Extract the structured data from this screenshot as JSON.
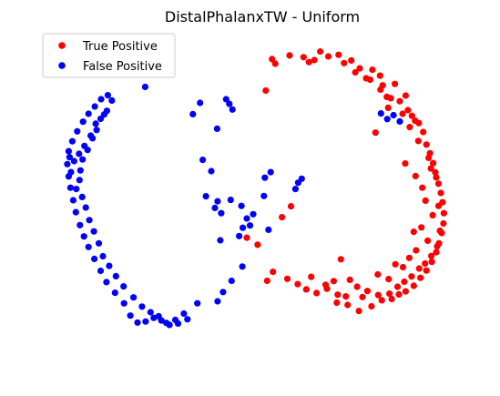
{
  "chart_data": {
    "type": "scatter",
    "title": "DistalPhalanxTW - Uniform",
    "xlabel": "",
    "ylabel": "",
    "axes_visible": false,
    "grid": false,
    "legend": "top-left",
    "xlim": [
      0,
      100
    ],
    "ylim": [
      0,
      100
    ],
    "series": [
      {
        "name": "True Positive",
        "color": "#ff0000",
        "points": [
          [
            54.8,
            92.6
          ],
          [
            55.5,
            91.2
          ],
          [
            58.7,
            93.7
          ],
          [
            61.8,
            93.2
          ],
          [
            63.0,
            91.7
          ],
          [
            64.2,
            92.3
          ],
          [
            65.5,
            94.9
          ],
          [
            67.3,
            93.4
          ],
          [
            69.6,
            93.9
          ],
          [
            70.8,
            91.4
          ],
          [
            72.4,
            92.2
          ],
          [
            74.3,
            89.8
          ],
          [
            75.7,
            86.8
          ],
          [
            77.1,
            89.4
          ],
          [
            78.8,
            87.6
          ],
          [
            79.4,
            84.7
          ],
          [
            80.3,
            81.2
          ],
          [
            82.1,
            85.1
          ],
          [
            83.2,
            79.9
          ],
          [
            84.5,
            81.6
          ],
          [
            85.0,
            77.2
          ],
          [
            85.9,
            75.5
          ],
          [
            86.6,
            74.0
          ],
          [
            87.4,
            73.3
          ],
          [
            88.4,
            70.6
          ],
          [
            89.1,
            66.8
          ],
          [
            89.9,
            64.2
          ],
          [
            90.6,
            61.2
          ],
          [
            91.1,
            58.4
          ],
          [
            91.8,
            55.0
          ],
          [
            92.3,
            52.2
          ],
          [
            92.7,
            49.4
          ],
          [
            93.0,
            46.1
          ],
          [
            92.9,
            43.0
          ],
          [
            92.5,
            40.1
          ],
          [
            91.9,
            37.0
          ],
          [
            91.3,
            34.3
          ],
          [
            90.3,
            31.4
          ],
          [
            89.1,
            28.8
          ],
          [
            87.8,
            26.6
          ],
          [
            86.3,
            24.2
          ],
          [
            84.5,
            22.5
          ],
          [
            83.0,
            21.6
          ],
          [
            81.4,
            20.2
          ],
          [
            79.2,
            19.8
          ],
          [
            76.9,
            18.0
          ],
          [
            74.1,
            16.6
          ],
          [
            71.6,
            18.4
          ],
          [
            69.4,
            21.5
          ],
          [
            67.0,
            23.3
          ],
          [
            64.7,
            22.0
          ],
          [
            62.4,
            23.1
          ],
          [
            60.5,
            24.7
          ],
          [
            58.2,
            26.3
          ],
          [
            55.0,
            28.4
          ],
          [
            53.7,
            25.7
          ],
          [
            51.6,
            36.6
          ],
          [
            49.2,
            38.7
          ],
          [
            53.4,
            83.1
          ],
          [
            57.0,
            44.9
          ],
          [
            59.0,
            48.2
          ],
          [
            92.1,
            40.8
          ],
          [
            91.5,
            36.1
          ],
          [
            90.2,
            33.2
          ],
          [
            88.8,
            30.9
          ],
          [
            87.5,
            29.4
          ],
          [
            85.8,
            27.0
          ],
          [
            84.2,
            25.4
          ],
          [
            82.7,
            23.9
          ],
          [
            80.9,
            21.8
          ],
          [
            78.4,
            21.4
          ],
          [
            76.0,
            22.6
          ],
          [
            73.7,
            23.9
          ],
          [
            71.2,
            21.0
          ],
          [
            68.5,
            25.6
          ],
          [
            91.3,
            56.9
          ],
          [
            90.1,
            59.6
          ],
          [
            89.6,
            62.8
          ],
          [
            90.5,
            45.5
          ],
          [
            91.8,
            48.3
          ],
          [
            88.9,
            49.9
          ],
          [
            88.2,
            53.8
          ],
          [
            86.7,
            57.3
          ],
          [
            84.4,
            61.1
          ],
          [
            87.3,
            67.9
          ],
          [
            85.4,
            72.1
          ],
          [
            83.8,
            76.1
          ],
          [
            81.2,
            80.8
          ],
          [
            78.9,
            83.4
          ],
          [
            76.6,
            86.4
          ],
          [
            73.3,
            88.6
          ],
          [
            70.1,
            32.2
          ],
          [
            77.8,
            70.4
          ],
          [
            80.6,
            77.9
          ],
          [
            86.3,
            40.5
          ],
          [
            82.2,
            30.7
          ],
          [
            88.0,
            41.8
          ],
          [
            89.4,
            37.8
          ],
          [
            86.8,
            34.9
          ],
          [
            85.3,
            32.6
          ],
          [
            83.9,
            29.8
          ],
          [
            80.7,
            26.2
          ],
          [
            78.3,
            27.6
          ],
          [
            74.9,
            20.8
          ],
          [
            72.1,
            26.0
          ],
          [
            69.2,
            19.1
          ],
          [
            66.7,
            24.5
          ],
          [
            63.5,
            26.9
          ]
        ]
      },
      {
        "name": "False Positive",
        "color": "#0000ff",
        "points": [
          [
            26.6,
            84.2
          ],
          [
            37.2,
            76.0
          ],
          [
            38.8,
            79.4
          ],
          [
            44.6,
            80.5
          ],
          [
            45.3,
            79.1
          ],
          [
            46.0,
            77.4
          ],
          [
            42.6,
            71.6
          ],
          [
            39.4,
            62.2
          ],
          [
            41.3,
            58.8
          ],
          [
            40.1,
            51.2
          ],
          [
            42.7,
            49.7
          ],
          [
            43.5,
            46.1
          ],
          [
            45.6,
            50.1
          ],
          [
            48.0,
            48.3
          ],
          [
            49.2,
            44.5
          ],
          [
            49.9,
            42.4
          ],
          [
            50.6,
            45.8
          ],
          [
            53.2,
            56.8
          ],
          [
            54.5,
            58.5
          ],
          [
            53.0,
            51.3
          ],
          [
            54.0,
            41.1
          ],
          [
            60.0,
            53.4
          ],
          [
            60.6,
            55.3
          ],
          [
            61.4,
            56.5
          ],
          [
            42.1,
            47.7
          ],
          [
            43.3,
            37.9
          ],
          [
            47.5,
            39.2
          ],
          [
            48.3,
            41.7
          ],
          [
            48.2,
            30.0
          ],
          [
            45.8,
            25.7
          ],
          [
            43.9,
            22.3
          ],
          [
            42.7,
            19.5
          ],
          [
            38.2,
            18.9
          ],
          [
            35.2,
            15.8
          ],
          [
            33.3,
            13.9
          ],
          [
            32.0,
            12.4
          ],
          [
            30.2,
            13.7
          ],
          [
            28.5,
            14.5
          ],
          [
            26.7,
            13.4
          ],
          [
            24.9,
            13.1
          ],
          [
            23.3,
            15.2
          ],
          [
            21.9,
            18.9
          ],
          [
            19.9,
            22.1
          ],
          [
            18.0,
            25.3
          ],
          [
            16.7,
            28.7
          ],
          [
            15.3,
            32.3
          ],
          [
            14.0,
            35.9
          ],
          [
            13.0,
            39.1
          ],
          [
            12.1,
            42.5
          ],
          [
            11.2,
            46.4
          ],
          [
            10.6,
            50.0
          ],
          [
            10.0,
            53.8
          ],
          [
            9.6,
            57.2
          ],
          [
            9.3,
            60.9
          ],
          [
            9.6,
            64.8
          ],
          [
            10.4,
            67.8
          ],
          [
            11.5,
            70.8
          ],
          [
            12.8,
            73.7
          ],
          [
            14.0,
            76.1
          ],
          [
            15.4,
            78.3
          ],
          [
            16.8,
            80.5
          ],
          [
            18.3,
            81.7
          ],
          [
            19.2,
            80.1
          ],
          [
            18.1,
            77.0
          ],
          [
            16.7,
            74.6
          ],
          [
            15.8,
            71.2
          ],
          [
            14.9,
            68.7
          ],
          [
            13.8,
            65.2
          ],
          [
            12.7,
            62.3
          ],
          [
            12.2,
            59.0
          ],
          [
            12.0,
            56.1
          ],
          [
            11.3,
            53.4
          ],
          [
            12.6,
            51.0
          ],
          [
            13.4,
            47.8
          ],
          [
            14.2,
            44.0
          ],
          [
            15.2,
            40.6
          ],
          [
            16.3,
            37.0
          ],
          [
            17.2,
            33.1
          ],
          [
            18.6,
            30.2
          ],
          [
            20.1,
            27.1
          ],
          [
            21.8,
            24.0
          ],
          [
            24.0,
            20.7
          ],
          [
            25.9,
            17.9
          ],
          [
            27.8,
            16.2
          ],
          [
            29.6,
            15.0
          ],
          [
            31.3,
            13.0
          ],
          [
            33.9,
            12.8
          ],
          [
            36.0,
            14.1
          ],
          [
            10.8,
            61.8
          ],
          [
            11.9,
            64.0
          ],
          [
            13.1,
            66.4
          ],
          [
            14.5,
            69.5
          ],
          [
            15.6,
            73.1
          ],
          [
            17.5,
            75.9
          ],
          [
            9.8,
            63.0
          ],
          [
            10.1,
            58.5
          ],
          [
            79.0,
            76.2
          ],
          [
            80.4,
            74.5
          ],
          [
            81.8,
            75.7
          ],
          [
            83.2,
            73.8
          ]
        ]
      }
    ]
  }
}
